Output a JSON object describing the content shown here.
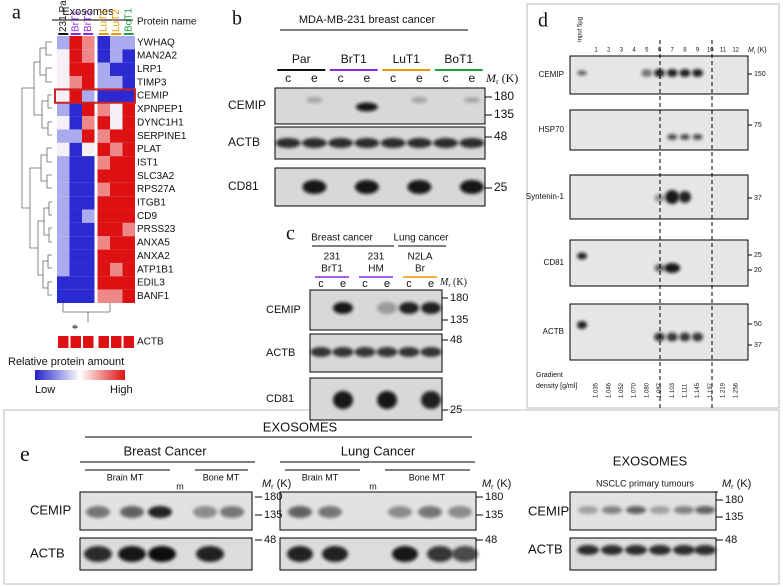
{
  "panel_a": {
    "label": "a",
    "header": "Exosomes",
    "columns": [
      "231 Par",
      "BrT1",
      "BrT2",
      "LuT1",
      "LuT2",
      "BoT1"
    ],
    "protein_header": "Protein name",
    "proteins": [
      "YWHAQ",
      "MAN2A2",
      "LRP1",
      "TIMP3",
      "CEMIP",
      "XPNPEP1",
      "DYNC1H1",
      "SERPINE1",
      "PLAT",
      "IST1",
      "SLC3A2",
      "RPS27A",
      "ITGB1",
      "CD9",
      "PRSS23",
      "ANXA5",
      "ANXA2",
      "ATP1B1",
      "EDIL3",
      "BANF1"
    ],
    "asterisk": "*",
    "control": "ACTB",
    "legend_title": "Relative protein amount",
    "legend_low": "Low",
    "legend_high": "High"
  },
  "mr": {
    "m": "M",
    "r": "r",
    "k": " (K)"
  },
  "panel_b": {
    "label": "b",
    "title": "MDA-MB-231 breast cancer",
    "groups": [
      "Par",
      "BrT1",
      "LuT1",
      "BoT1"
    ],
    "lane_c": "c",
    "lane_e": "e",
    "rows": [
      "CEMIP",
      "ACTB",
      "CD81"
    ],
    "markers": [
      "180",
      "135",
      "48",
      "25"
    ]
  },
  "panel_c": {
    "label": "c",
    "breast": "Breast cancer",
    "lung": "Lung cancer",
    "lanes": [
      [
        "231",
        "BrT1"
      ],
      [
        "231",
        "HM"
      ],
      [
        "N2LA",
        "Br"
      ]
    ],
    "lane_c": "c",
    "lane_e": "e",
    "rows": [
      "CEMIP",
      "ACTB",
      "CD81"
    ],
    "markers": [
      "180",
      "135",
      "48",
      "25"
    ]
  },
  "panel_d": {
    "label": "d",
    "input": "Input 5µg",
    "lanes": [
      "1",
      "2",
      "3",
      "4",
      "5",
      "6",
      "7",
      "8",
      "9",
      "10",
      "11",
      "12"
    ],
    "rows": [
      "CEMIP",
      "HSP70",
      "Syntenin-1",
      "CD81",
      "ACTB"
    ],
    "markers": [
      [
        "150"
      ],
      [
        "75"
      ],
      [
        "37"
      ],
      [
        "25",
        "20"
      ],
      [
        "50",
        "37"
      ]
    ],
    "density_label": [
      "Gradient",
      "density [g/ml]"
    ],
    "densities": [
      "1.035",
      "1.046",
      "1.052",
      "1.070",
      "1.080",
      "1.087",
      "1.103",
      "1.111",
      "1.145",
      "1.197",
      "1.219",
      "1.256"
    ]
  },
  "panel_e": {
    "label": "e",
    "title": "EXOSOMES",
    "breast": "Breast Cancer",
    "lung": "Lung Cancer",
    "brain": "Brain MT",
    "bone": "Bone MT",
    "m": "m",
    "rows": [
      "CEMIP",
      "ACTB"
    ],
    "markers": [
      "180",
      "135",
      "48"
    ],
    "right_title": "EXOSOMES",
    "right_subtitle": "NSCLC primary tumours"
  }
}
